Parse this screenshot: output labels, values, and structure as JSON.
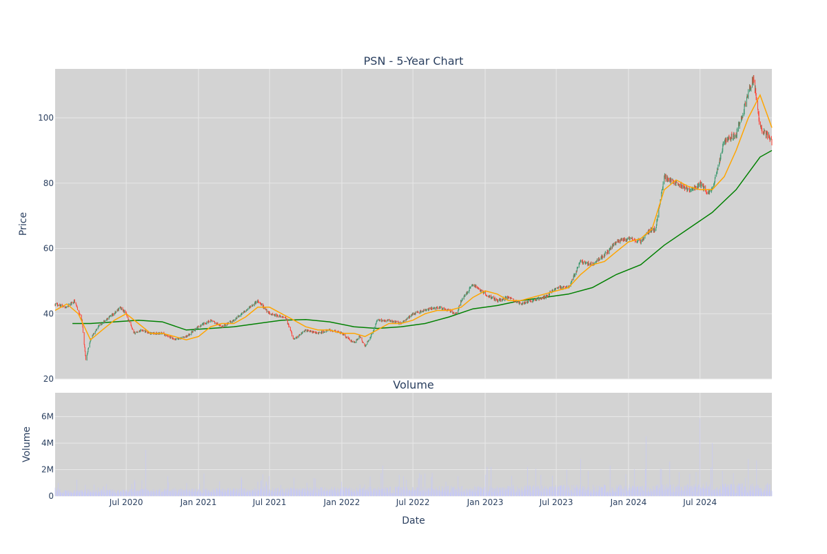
{
  "chart_data": [
    {
      "type": "candlestick",
      "title": "PSN - 5-Year Chart",
      "ylabel": "Price",
      "ylim": [
        20,
        115
      ],
      "yticks": [
        20,
        40,
        60,
        80,
        100
      ],
      "grid": true,
      "x_range": [
        "2020-01-02",
        "2024-12-31"
      ],
      "xticks": [
        "2020-07-01",
        "2021-01-01",
        "2021-07-01",
        "2022-01-01",
        "2022-07-01",
        "2023-01-01",
        "2023-07-01",
        "2024-01-01",
        "2024-07-01"
      ],
      "colors": {
        "increasing": "#3d9970",
        "decreasing": "#ff4136",
        "ma_short": "#ffa500",
        "ma_long": "#008000",
        "plot_bg": "#d3d3d3",
        "grid": "#e8e8e8"
      },
      "series": [
        {
          "role": "close",
          "x": [
            "2020-01-02",
            "2020-02-01",
            "2020-02-20",
            "2020-03-10",
            "2020-03-20",
            "2020-04-01",
            "2020-04-20",
            "2020-05-10",
            "2020-06-01",
            "2020-06-15",
            "2020-07-01",
            "2020-07-20",
            "2020-08-10",
            "2020-09-01",
            "2020-10-01",
            "2020-11-01",
            "2020-12-01",
            "2021-01-01",
            "2021-02-01",
            "2021-03-01",
            "2021-04-01",
            "2021-05-01",
            "2021-06-01",
            "2021-07-01",
            "2021-08-01",
            "2021-08-10",
            "2021-09-01",
            "2021-10-01",
            "2021-11-01",
            "2021-12-01",
            "2022-01-01",
            "2022-02-01",
            "2022-02-15",
            "2022-03-01",
            "2022-03-20",
            "2022-04-01",
            "2022-05-01",
            "2022-06-01",
            "2022-07-01",
            "2022-08-01",
            "2022-09-01",
            "2022-10-01",
            "2022-10-20",
            "2022-11-01",
            "2022-12-01",
            "2023-01-01",
            "2023-02-01",
            "2023-03-01",
            "2023-04-01",
            "2023-05-01",
            "2023-06-01",
            "2023-07-01",
            "2023-08-01",
            "2023-09-01",
            "2023-10-01",
            "2023-11-01",
            "2023-12-01",
            "2024-01-01",
            "2024-02-01",
            "2024-02-20",
            "2024-03-10",
            "2024-04-01",
            "2024-05-01",
            "2024-06-01",
            "2024-06-15",
            "2024-07-01",
            "2024-07-20",
            "2024-08-01",
            "2024-09-01",
            "2024-10-01",
            "2024-10-20",
            "2024-11-01",
            "2024-11-15",
            "2024-12-01",
            "2024-12-31"
          ],
          "y": [
            43,
            42,
            44,
            38,
            26,
            32,
            36,
            38,
            40,
            42,
            40,
            34,
            35,
            34,
            34,
            32,
            33,
            36,
            38,
            36,
            38,
            41,
            44,
            40,
            39,
            39,
            32,
            35,
            34,
            35,
            34,
            31,
            33,
            30,
            34,
            38,
            38,
            37,
            40,
            41,
            42,
            41,
            40,
            44,
            49,
            46,
            44,
            45,
            43,
            44,
            45,
            48,
            48,
            56,
            55,
            58,
            62,
            63,
            62,
            65,
            66,
            82,
            80,
            78,
            78,
            80,
            77,
            78,
            93,
            95,
            102,
            108,
            112,
            97,
            93
          ]
        },
        {
          "role": "ma_short",
          "x": [
            "2020-01-02",
            "2020-02-01",
            "2020-03-01",
            "2020-04-01",
            "2020-05-01",
            "2020-06-01",
            "2020-07-01",
            "2020-08-01",
            "2020-09-01",
            "2020-10-01",
            "2020-11-01",
            "2020-12-01",
            "2021-01-01",
            "2021-02-01",
            "2021-03-01",
            "2021-04-01",
            "2021-05-01",
            "2021-06-01",
            "2021-07-01",
            "2021-08-01",
            "2021-09-01",
            "2021-10-01",
            "2021-11-01",
            "2021-12-01",
            "2022-01-01",
            "2022-02-01",
            "2022-03-01",
            "2022-04-01",
            "2022-05-01",
            "2022-06-01",
            "2022-07-01",
            "2022-08-01",
            "2022-09-01",
            "2022-10-01",
            "2022-11-01",
            "2022-12-01",
            "2023-01-01",
            "2023-02-01",
            "2023-03-01",
            "2023-04-01",
            "2023-05-01",
            "2023-06-01",
            "2023-07-01",
            "2023-08-01",
            "2023-09-01",
            "2023-10-01",
            "2023-11-01",
            "2023-12-01",
            "2024-01-01",
            "2024-02-01",
            "2024-03-01",
            "2024-04-01",
            "2024-05-01",
            "2024-06-01",
            "2024-07-01",
            "2024-08-01",
            "2024-09-01",
            "2024-10-01",
            "2024-11-01",
            "2024-12-01",
            "2024-12-31"
          ],
          "y": [
            41,
            43,
            40,
            32,
            35,
            38,
            40,
            37,
            34,
            34,
            33,
            32,
            33,
            36,
            37,
            37,
            39,
            42,
            42,
            40,
            38,
            36,
            35,
            35,
            34,
            34,
            33,
            35,
            37,
            37,
            38,
            40,
            41,
            41,
            42,
            45,
            47,
            46,
            44,
            44,
            45,
            46,
            47,
            48,
            52,
            55,
            56,
            59,
            62,
            63,
            66,
            78,
            81,
            79,
            78,
            78,
            82,
            90,
            100,
            107,
            97
          ]
        },
        {
          "role": "ma_long",
          "x": [
            "2020-02-15",
            "2020-04-01",
            "2020-06-01",
            "2020-08-01",
            "2020-10-01",
            "2020-12-01",
            "2021-02-01",
            "2021-04-01",
            "2021-06-01",
            "2021-08-01",
            "2021-10-01",
            "2021-12-01",
            "2022-02-01",
            "2022-04-01",
            "2022-06-01",
            "2022-08-01",
            "2022-10-01",
            "2022-12-01",
            "2023-02-01",
            "2023-04-01",
            "2023-06-01",
            "2023-08-01",
            "2023-10-01",
            "2023-12-01",
            "2024-02-01",
            "2024-04-01",
            "2024-06-01",
            "2024-08-01",
            "2024-10-01",
            "2024-12-01",
            "2024-12-31"
          ],
          "y": [
            37,
            37,
            37.5,
            38,
            37.5,
            35,
            35.5,
            36,
            37,
            38,
            38.2,
            37.5,
            36,
            35.5,
            36,
            37,
            39,
            41.5,
            42.5,
            44,
            45,
            46,
            48,
            52,
            55,
            61,
            66,
            71,
            78,
            88,
            90
          ]
        }
      ]
    },
    {
      "type": "bar",
      "title": "Volume",
      "xlabel": "Date",
      "ylabel": "Volume",
      "ylim": [
        0,
        7800000
      ],
      "yticks": [
        0,
        2000000,
        4000000,
        6000000
      ],
      "ytick_labels": [
        "0",
        "2M",
        "4M",
        "6M"
      ],
      "grid": true,
      "bar_color": "#c7c9f5",
      "x_range": [
        "2020-01-02",
        "2024-12-31"
      ],
      "xticks": [
        "2020-07-01",
        "2021-01-01",
        "2021-07-01",
        "2022-01-01",
        "2022-07-01",
        "2023-01-01",
        "2023-07-01",
        "2024-01-01",
        "2024-07-01"
      ],
      "xtick_labels": [
        "Jul 2020",
        "Jan 2021",
        "Jul 2021",
        "Jan 2022",
        "Jul 2022",
        "Jan 2023",
        "Jul 2023",
        "Jan 2024",
        "Jul 2024"
      ],
      "spikes": [
        {
          "x": "2020-08-20",
          "value": 3500000
        },
        {
          "x": "2020-10-15",
          "value": 1500000
        },
        {
          "x": "2021-01-15",
          "value": 1700000
        },
        {
          "x": "2021-05-01",
          "value": 1900000
        },
        {
          "x": "2021-08-01",
          "value": 2000000
        },
        {
          "x": "2022-04-15",
          "value": 2300000
        },
        {
          "x": "2022-08-01",
          "value": 1700000
        },
        {
          "x": "2023-09-01",
          "value": 2800000
        },
        {
          "x": "2023-11-15",
          "value": 2300000
        },
        {
          "x": "2024-02-15",
          "value": 4500000
        },
        {
          "x": "2024-04-15",
          "value": 2600000
        },
        {
          "x": "2024-07-01",
          "value": 5900000
        },
        {
          "x": "2024-08-01",
          "value": 4000000
        },
        {
          "x": "2024-09-15",
          "value": 7500000
        },
        {
          "x": "2024-11-01",
          "value": 2800000
        }
      ]
    }
  ]
}
